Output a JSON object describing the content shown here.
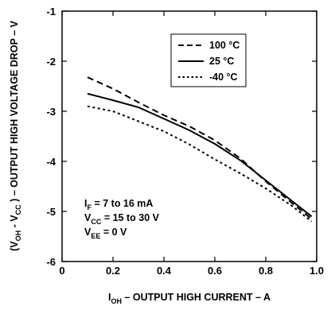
{
  "chart_data": {
    "type": "line",
    "xlabel_main": "I",
    "xlabel_sub": "OH",
    "xlabel_rest": " – OUTPUT HIGH CURRENT – A",
    "ylabel_open": "(V",
    "ylabel_sub1": "OH",
    "ylabel_mid": " - V",
    "ylabel_sub2": "CC",
    "ylabel_rest": " ) – OUTPUT HIGH VOLTAGE DROP – V",
    "xlim": [
      0,
      1.0
    ],
    "ylim": [
      -6,
      -1
    ],
    "x_ticks": [
      {
        "value": 0,
        "label": "0"
      },
      {
        "value": 0.2,
        "label": "0.2"
      },
      {
        "value": 0.4,
        "label": "0.4"
      },
      {
        "value": 0.6,
        "label": "0.6"
      },
      {
        "value": 0.8,
        "label": "0.8"
      },
      {
        "value": 1.0,
        "label": "1.0"
      }
    ],
    "y_ticks": [
      {
        "value": -1,
        "label": "-1"
      },
      {
        "value": -2,
        "label": "-2"
      },
      {
        "value": -3,
        "label": "-3"
      },
      {
        "value": -4,
        "label": "-4"
      },
      {
        "value": -5,
        "label": "-5"
      },
      {
        "value": -6,
        "label": "-6"
      }
    ],
    "series": [
      {
        "name": "100 °C",
        "dash": "dashed",
        "points": [
          [
            0.1,
            -2.32
          ],
          [
            0.2,
            -2.55
          ],
          [
            0.3,
            -2.82
          ],
          [
            0.4,
            -3.08
          ],
          [
            0.5,
            -3.3
          ],
          [
            0.6,
            -3.58
          ],
          [
            0.7,
            -3.94
          ],
          [
            0.8,
            -4.4
          ],
          [
            0.9,
            -4.82
          ],
          [
            0.98,
            -5.15
          ]
        ]
      },
      {
        "name": "25 °C",
        "dash": "solid",
        "points": [
          [
            0.1,
            -2.65
          ],
          [
            0.2,
            -2.78
          ],
          [
            0.3,
            -2.92
          ],
          [
            0.4,
            -3.15
          ],
          [
            0.5,
            -3.38
          ],
          [
            0.6,
            -3.65
          ],
          [
            0.7,
            -3.98
          ],
          [
            0.8,
            -4.38
          ],
          [
            0.9,
            -4.78
          ],
          [
            0.98,
            -5.1
          ]
        ]
      },
      {
        "name": "-40 °C",
        "dash": "dotted",
        "points": [
          [
            0.1,
            -2.9
          ],
          [
            0.2,
            -3.0
          ],
          [
            0.3,
            -3.2
          ],
          [
            0.4,
            -3.4
          ],
          [
            0.5,
            -3.66
          ],
          [
            0.6,
            -3.96
          ],
          [
            0.7,
            -4.24
          ],
          [
            0.8,
            -4.54
          ],
          [
            0.9,
            -4.88
          ],
          [
            0.98,
            -5.2
          ]
        ]
      }
    ],
    "legend_position": "top-right",
    "annotations": [
      {
        "main": "I",
        "sub": "F",
        "rest": " = 7 to 16 mA"
      },
      {
        "main": "V",
        "sub": "CC",
        "rest": " = 15 to 30 V"
      },
      {
        "main": "V",
        "sub": "EE",
        "rest": " = 0 V"
      }
    ],
    "grid": false
  }
}
